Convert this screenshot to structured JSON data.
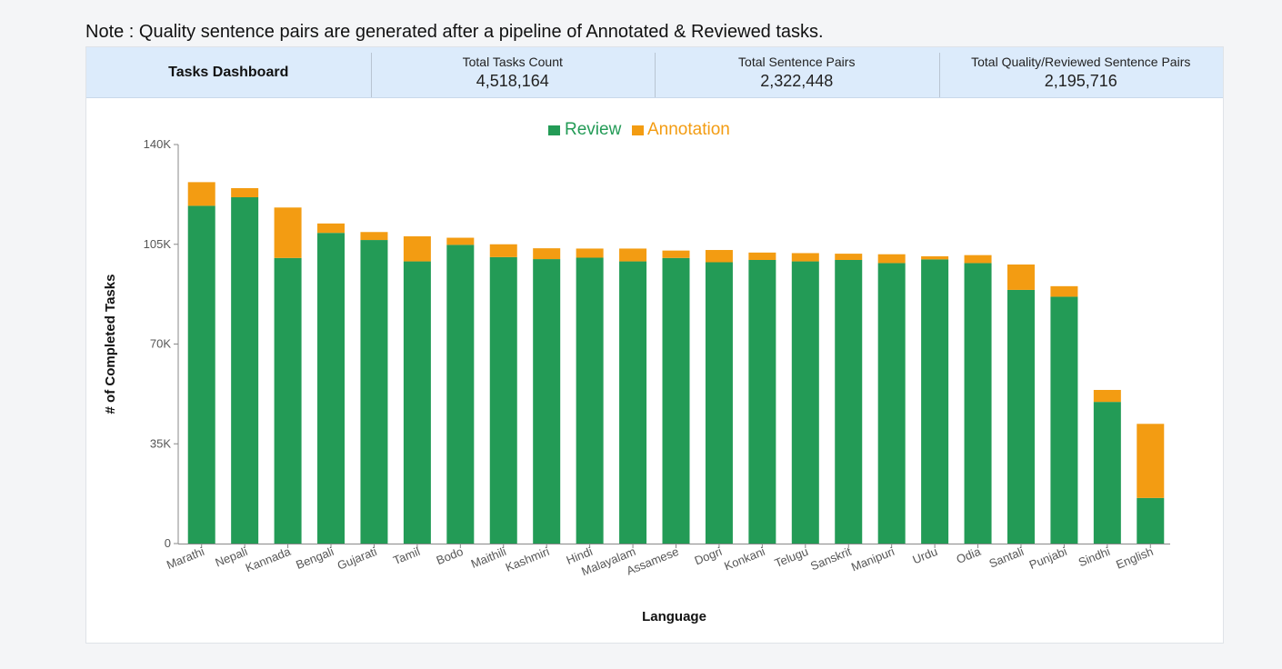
{
  "note": "Note : Quality sentence pairs are generated after a pipeline of Annotated & Reviewed tasks.",
  "stats": {
    "dashboard_title": "Tasks Dashboard",
    "total_tasks_label": "Total Tasks Count",
    "total_tasks_value": "4,518,164",
    "total_pairs_label": "Total Sentence Pairs",
    "total_pairs_value": "2,322,448",
    "total_quality_label": "Total Quality/Reviewed Sentence Pairs",
    "total_quality_value": "2,195,716"
  },
  "chart_data": {
    "type": "bar",
    "stacked": true,
    "xlabel": "Language",
    "ylabel": "# of Completed Tasks",
    "ylim": [
      0,
      140000
    ],
    "yticks": [
      0,
      35000,
      70000,
      105000,
      140000
    ],
    "ytick_labels": [
      "0",
      "35K",
      "70K",
      "105K",
      "140K"
    ],
    "legend_position": "top-center",
    "categories": [
      "Marathi",
      "Nepali",
      "Kannada",
      "Bengali",
      "Gujarati",
      "Tamil",
      "Bodo",
      "Maithili",
      "Kashmiri",
      "Hindi",
      "Malayalam",
      "Assamese",
      "Dogri",
      "Konkani",
      "Telugu",
      "Sanskrit",
      "Manipuri",
      "Urdu",
      "Odia",
      "Santali",
      "Punjabi",
      "Sindhi",
      "English"
    ],
    "series": [
      {
        "name": "Review",
        "color": "#239b56",
        "values": [
          118500,
          121500,
          100200,
          109000,
          106500,
          99000,
          104800,
          100500,
          99800,
          100300,
          99000,
          100200,
          98700,
          99500,
          99000,
          99500,
          98400,
          99700,
          98400,
          89000,
          86600,
          49700,
          16000
        ]
      },
      {
        "name": "Annotation",
        "color": "#f39c12",
        "values": [
          8300,
          3200,
          17700,
          3300,
          2800,
          8800,
          2500,
          4500,
          3800,
          3200,
          4500,
          2600,
          4300,
          2600,
          2900,
          2200,
          3100,
          1100,
          2800,
          8900,
          3700,
          4200,
          26000
        ]
      }
    ],
    "grid": false
  }
}
